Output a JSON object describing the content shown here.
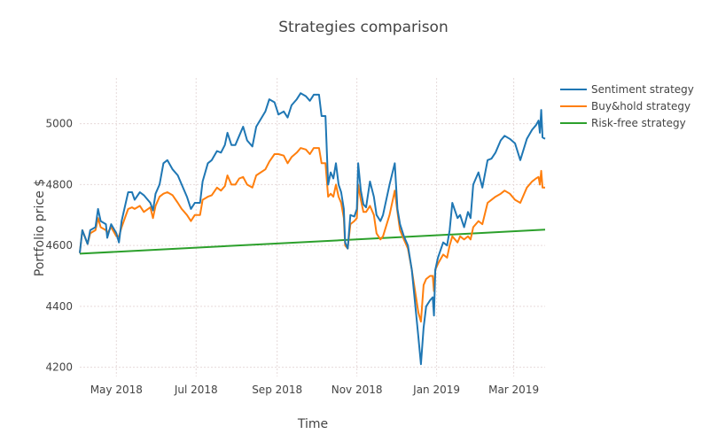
{
  "chart_data": {
    "type": "line",
    "title": "Strategies comparison",
    "xlabel": "Time",
    "ylabel": "Portfolio price $",
    "xlim": [
      "2018-04-03",
      "2019-03-25"
    ],
    "ylim": [
      4170,
      5150
    ],
    "grid": true,
    "legend_position": "top-right (outside)",
    "x_ticks": [
      {
        "date": "2018-05-01",
        "label": "May 2018"
      },
      {
        "date": "2018-07-01",
        "label": "Jul 2018"
      },
      {
        "date": "2018-09-01",
        "label": "Sep 2018"
      },
      {
        "date": "2018-11-01",
        "label": "Nov 2018"
      },
      {
        "date": "2019-01-01",
        "label": "Jan 2019"
      },
      {
        "date": "2019-03-01",
        "label": "Mar 2019"
      }
    ],
    "y_ticks": [
      4200,
      4400,
      4600,
      4800,
      5000
    ],
    "x": [
      "2018-04-03",
      "2018-04-05",
      "2018-04-09",
      "2018-04-11",
      "2018-04-15",
      "2018-04-17",
      "2018-04-19",
      "2018-04-23",
      "2018-04-24",
      "2018-04-27",
      "2018-05-01",
      "2018-05-03",
      "2018-05-05",
      "2018-05-10",
      "2018-05-13",
      "2018-05-15",
      "2018-05-19",
      "2018-05-22",
      "2018-05-27",
      "2018-05-29",
      "2018-05-31",
      "2018-06-03",
      "2018-06-06",
      "2018-06-09",
      "2018-06-13",
      "2018-06-17",
      "2018-06-20",
      "2018-06-24",
      "2018-06-27",
      "2018-06-30",
      "2018-07-04",
      "2018-07-06",
      "2018-07-10",
      "2018-07-13",
      "2018-07-17",
      "2018-07-20",
      "2018-07-23",
      "2018-07-25",
      "2018-07-28",
      "2018-07-31",
      "2018-08-03",
      "2018-08-06",
      "2018-08-09",
      "2018-08-13",
      "2018-08-16",
      "2018-08-23",
      "2018-08-26",
      "2018-08-30",
      "2018-09-02",
      "2018-09-06",
      "2018-09-09",
      "2018-09-12",
      "2018-09-16",
      "2018-09-19",
      "2018-09-23",
      "2018-09-26",
      "2018-09-29",
      "2018-10-03",
      "2018-10-05",
      "2018-10-08",
      "2018-10-10",
      "2018-10-12",
      "2018-10-14",
      "2018-10-16",
      "2018-10-18",
      "2018-10-20",
      "2018-10-22",
      "2018-10-23",
      "2018-10-25",
      "2018-10-27",
      "2018-10-30",
      "2018-11-01",
      "2018-11-02",
      "2018-11-04",
      "2018-11-06",
      "2018-11-08",
      "2018-11-11",
      "2018-11-14",
      "2018-11-16",
      "2018-11-19",
      "2018-11-21",
      "2018-11-26",
      "2018-11-30",
      "2018-12-02",
      "2018-12-04",
      "2018-12-07",
      "2018-12-10",
      "2018-12-13",
      "2018-12-18",
      "2018-12-20",
      "2018-12-22",
      "2018-12-24",
      "2018-12-27",
      "2018-12-29",
      "2018-12-30",
      "2018-12-31",
      "2019-01-02",
      "2019-01-06",
      "2019-01-09",
      "2019-01-11",
      "2019-01-13",
      "2019-01-17",
      "2019-01-19",
      "2019-01-22",
      "2019-01-25",
      "2019-01-27",
      "2019-01-29",
      "2019-02-02",
      "2019-02-05",
      "2019-02-09",
      "2019-02-12",
      "2019-02-15",
      "2019-02-19",
      "2019-02-22",
      "2019-02-26",
      "2019-03-02",
      "2019-03-06",
      "2019-03-11",
      "2019-03-15",
      "2019-03-18",
      "2019-03-20",
      "2019-03-21",
      "2019-03-22",
      "2019-03-23",
      "2019-03-25"
    ],
    "series": [
      {
        "name": "Sentiment strategy",
        "color": "#1f77b4",
        "values": [
          4575,
          4650,
          4605,
          4650,
          4660,
          4720,
          4680,
          4670,
          4625,
          4670,
          4640,
          4610,
          4680,
          4775,
          4775,
          4750,
          4775,
          4765,
          4740,
          4715,
          4770,
          4800,
          4870,
          4880,
          4850,
          4830,
          4800,
          4760,
          4720,
          4740,
          4740,
          4810,
          4870,
          4880,
          4910,
          4905,
          4930,
          4970,
          4930,
          4930,
          4960,
          4990,
          4945,
          4925,
          4990,
          5040,
          5080,
          5070,
          5030,
          5040,
          5020,
          5060,
          5080,
          5100,
          5090,
          5075,
          5095,
          5095,
          5025,
          5025,
          4800,
          4840,
          4820,
          4870,
          4800,
          4775,
          4720,
          4610,
          4590,
          4700,
          4695,
          4720,
          4870,
          4780,
          4735,
          4725,
          4810,
          4760,
          4700,
          4680,
          4700,
          4800,
          4870,
          4720,
          4670,
          4630,
          4600,
          4520,
          4300,
          4210,
          4330,
          4400,
          4420,
          4430,
          4370,
          4520,
          4560,
          4610,
          4600,
          4650,
          4740,
          4690,
          4700,
          4660,
          4710,
          4690,
          4800,
          4840,
          4790,
          4880,
          4885,
          4905,
          4945,
          4960,
          4950,
          4935,
          4880,
          4950,
          4980,
          4995,
          5010,
          4970,
          5045,
          4955,
          4950
        ]
      },
      {
        "name": "Buy&hold strategy",
        "color": "#ff7f0e",
        "values": [
          4575,
          4650,
          4605,
          4640,
          4650,
          4690,
          4660,
          4650,
          4640,
          4660,
          4630,
          4630,
          4660,
          4720,
          4725,
          4720,
          4730,
          4710,
          4725,
          4690,
          4730,
          4760,
          4770,
          4775,
          4765,
          4740,
          4720,
          4700,
          4680,
          4700,
          4700,
          4750,
          4760,
          4765,
          4790,
          4780,
          4795,
          4830,
          4800,
          4800,
          4820,
          4825,
          4800,
          4790,
          4830,
          4850,
          4875,
          4900,
          4900,
          4895,
          4870,
          4890,
          4905,
          4920,
          4915,
          4900,
          4920,
          4920,
          4870,
          4870,
          4760,
          4770,
          4760,
          4800,
          4760,
          4740,
          4690,
          4600,
          4590,
          4670,
          4680,
          4690,
          4800,
          4750,
          4710,
          4710,
          4730,
          4700,
          4640,
          4620,
          4630,
          4700,
          4780,
          4710,
          4650,
          4620,
          4590,
          4520,
          4380,
          4350,
          4470,
          4490,
          4500,
          4500,
          4450,
          4520,
          4540,
          4570,
          4560,
          4600,
          4630,
          4610,
          4630,
          4620,
          4630,
          4620,
          4660,
          4680,
          4670,
          4740,
          4750,
          4760,
          4770,
          4780,
          4770,
          4750,
          4740,
          4790,
          4810,
          4820,
          4825,
          4800,
          4845,
          4790,
          4790
        ]
      },
      {
        "name": "Risk-free strategy",
        "color": "#2ca02c",
        "x": [
          "2018-04-03",
          "2019-03-25"
        ],
        "values": [
          4573,
          4652
        ]
      }
    ]
  }
}
